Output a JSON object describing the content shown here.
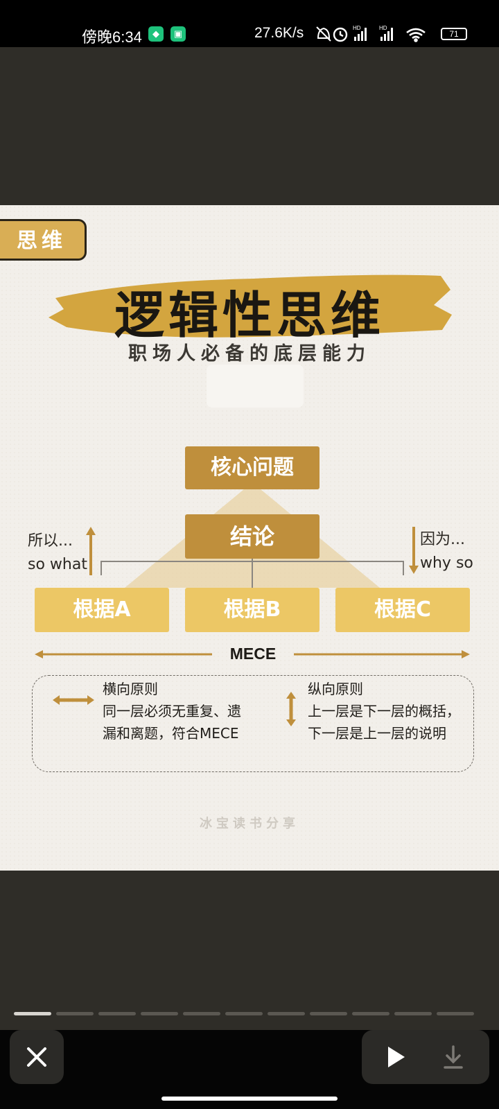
{
  "status_bar": {
    "time": "傍晚6:34",
    "net_speed": "27.6K/s",
    "battery": "71",
    "hd_label": "HD"
  },
  "post_image": {
    "tag": "思维",
    "title": "逻辑性思维",
    "subtitle": "职场人必备的底层能力",
    "diagram": {
      "core": "核心问题",
      "conclusion": "结论",
      "left_note": [
        "所以...",
        "so what"
      ],
      "right_note": [
        "因为...",
        "why so"
      ],
      "basis": [
        "根据A",
        "根据B",
        "根据C"
      ],
      "mece": "MECE"
    },
    "rules": {
      "horizontal_title": "横向原则",
      "horizontal_lines": [
        "同一层必须无重复、遗",
        "漏和离题，符合MECE"
      ],
      "vertical_title": "纵向原则",
      "vertical_lines": [
        "上一层是下一层的概括，",
        "下一层是上一层的说明"
      ]
    },
    "watermark": "冰宝读书分享"
  },
  "colors": {
    "dark_gold": "#bf8f3c",
    "light_gold": "#ecc765",
    "brush": "#d3a53f"
  },
  "controls": {
    "progress_total": 11,
    "progress_current": 1
  }
}
